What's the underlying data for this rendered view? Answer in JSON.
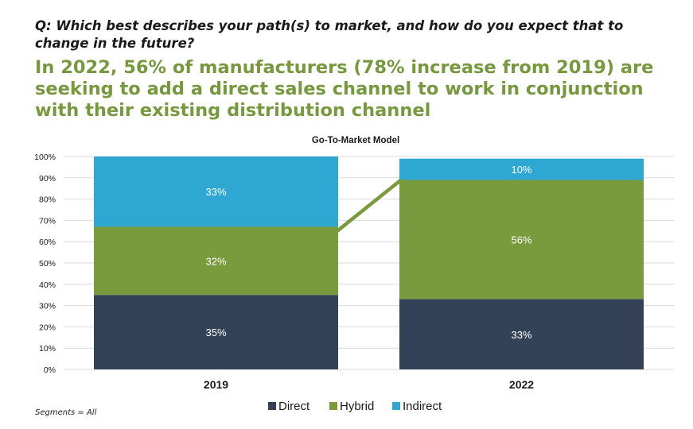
{
  "question": "Q: Which best describes your path(s) to market, and how do you expect that to change in the future?",
  "headline": "In 2022, 56% of manufacturers (78% increase from 2019) are seeking to add a direct sales channel to work in conjunction with their existing distribution channel",
  "footnote": "Segments = All",
  "colors": {
    "direct": "#334257",
    "hybrid": "#7a9a3e",
    "indirect": "#2ea8d3",
    "headline": "#77993e",
    "connector": "#7a9a3e"
  },
  "chart_data": {
    "type": "bar",
    "stacked": true,
    "title": "Go-To-Market Model",
    "categories": [
      "2019",
      "2022"
    ],
    "series": [
      {
        "name": "Direct",
        "values": [
          35,
          33
        ],
        "labels": [
          "35%",
          "33%"
        ]
      },
      {
        "name": "Hybrid",
        "values": [
          32,
          56
        ],
        "labels": [
          "32%",
          "56%"
        ]
      },
      {
        "name": "Indirect",
        "values": [
          33,
          10
        ],
        "labels": [
          "33%",
          "10%"
        ]
      }
    ],
    "ylim": [
      0,
      100
    ],
    "yticks": [
      "0%",
      "10%",
      "20%",
      "30%",
      "40%",
      "50%",
      "60%",
      "70%",
      "80%",
      "90%",
      "100%"
    ],
    "grid": true,
    "legend": "bottom-center",
    "connector": {
      "from_category": "2019",
      "to_category": "2022",
      "series": "Hybrid",
      "edge": "top"
    }
  }
}
